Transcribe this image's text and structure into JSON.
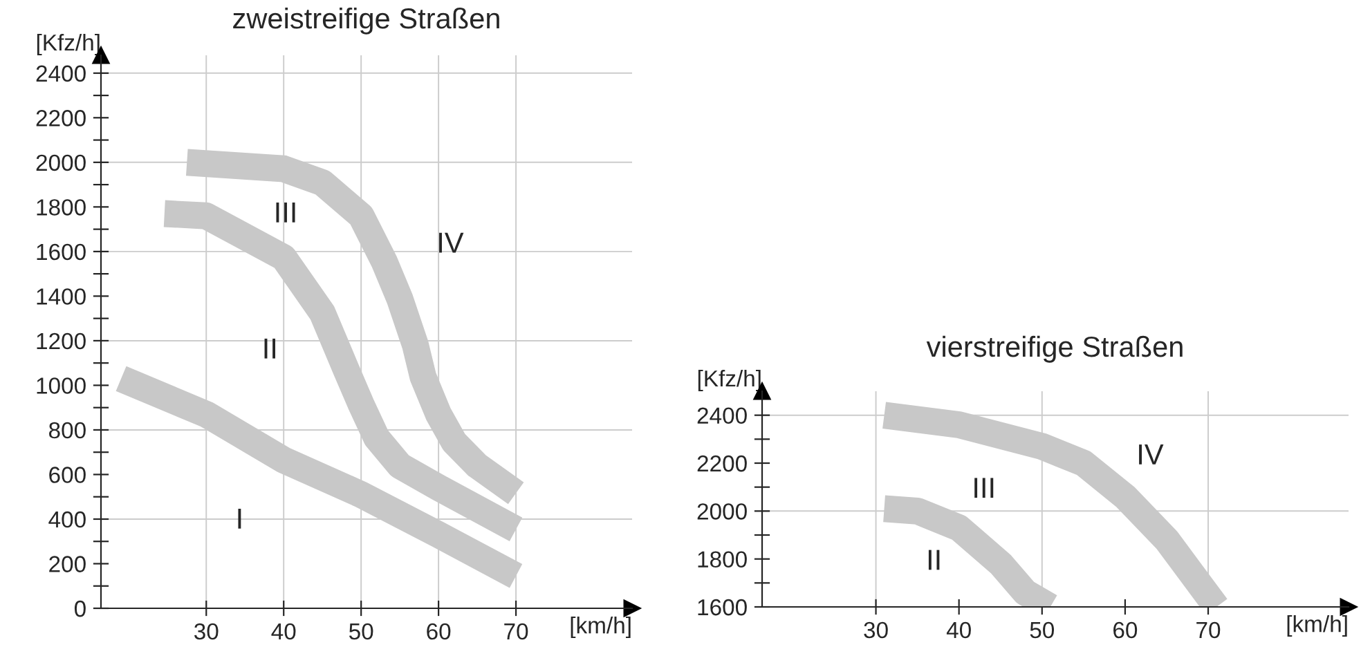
{
  "chart_data": [
    {
      "type": "line",
      "title": "zweistreifige Straßen",
      "xlabel": "[km/h]",
      "ylabel": "[Kfz/h]",
      "xlim": [
        16.4,
        85
      ],
      "ylim": [
        0,
        2480
      ],
      "xticks": [
        30,
        40,
        50,
        60,
        70
      ],
      "yticks": [
        0,
        {
          "value": 100,
          "label": null
        },
        200,
        {
          "value": 300,
          "label": null
        },
        400,
        {
          "value": 500,
          "label": null
        },
        600,
        {
          "value": 700,
          "label": null
        },
        800,
        {
          "value": 900,
          "label": null
        },
        1000,
        {
          "value": 1100,
          "label": null
        },
        1200,
        {
          "value": 1300,
          "label": null
        },
        1400,
        {
          "value": 1500,
          "label": null
        },
        1600,
        {
          "value": 1700,
          "label": null
        },
        1800,
        {
          "value": 1900,
          "label": null
        },
        2000,
        {
          "value": 2100,
          "label": null
        },
        2200,
        {
          "value": 2300,
          "label": null
        },
        2400
      ],
      "grid": false,
      "line_style": "solid",
      "marker": "none",
      "ref_lines": [
        {
          "axis": "x",
          "value": 30,
          "color": "#cccccc"
        },
        {
          "axis": "x",
          "value": 40,
          "color": "#cccccc"
        },
        {
          "axis": "x",
          "value": 50,
          "color": "#cccccc"
        },
        {
          "axis": "x",
          "value": 60,
          "color": "#cccccc"
        },
        {
          "axis": "x",
          "value": 70,
          "color": "#cccccc"
        },
        {
          "axis": "y",
          "value": 400,
          "color": "#cccccc"
        },
        {
          "axis": "y",
          "value": 800,
          "color": "#cccccc"
        },
        {
          "axis": "y",
          "value": 1200,
          "color": "#cccccc"
        },
        {
          "axis": "y",
          "value": 1600,
          "color": "#cccccc"
        },
        {
          "axis": "y",
          "value": 2000,
          "color": "#cccccc"
        },
        {
          "axis": "y",
          "value": 2400,
          "color": "#cccccc"
        }
      ],
      "series": [
        {
          "color": "#c8c8c8",
          "x": [
            19,
            30,
            40,
            50,
            60,
            70
          ],
          "values": [
            1030,
            870,
            665,
            510,
            330,
            145
          ]
        },
        {
          "color": "#c8c8c8",
          "x": [
            24.6,
            30,
            40,
            45,
            48,
            50,
            52,
            55,
            60,
            70
          ],
          "values": [
            1770,
            1760,
            1573,
            1324,
            1076,
            914,
            765,
            640,
            541,
            354
          ]
        },
        {
          "color": "#c8c8c8",
          "x": [
            27.5,
            40,
            45,
            50,
            53,
            55,
            57,
            58,
            60,
            62,
            65,
            70
          ],
          "values": [
            2000,
            1971,
            1909,
            1760,
            1554,
            1387,
            1181,
            1038,
            870,
            746,
            640,
            516
          ]
        }
      ],
      "annotations": [
        "I",
        "II",
        "III",
        "IV"
      ]
    },
    {
      "type": "line",
      "title": "vierstreifige Straßen",
      "xlabel": "[km/h]",
      "ylabel": "[Kfz/h]",
      "xlim": [
        16.3,
        86.9
      ],
      "ylim": [
        1600,
        2500
      ],
      "xticks": [
        30,
        40,
        50,
        60,
        70
      ],
      "yticks": [
        1600,
        {
          "value": 1700,
          "label": null
        },
        1800,
        {
          "value": 1900,
          "label": null
        },
        2000,
        {
          "value": 2100,
          "label": null
        },
        2200,
        {
          "value": 2300,
          "label": null
        },
        2400
      ],
      "grid": false,
      "line_style": "solid",
      "marker": "none",
      "ref_lines": [
        {
          "axis": "x",
          "value": 30,
          "color": "#cccccc"
        },
        {
          "axis": "x",
          "value": 50,
          "color": "#cccccc"
        },
        {
          "axis": "x",
          "value": 70,
          "color": "#cccccc"
        },
        {
          "axis": "y",
          "value": 2000,
          "color": "#cccccc"
        },
        {
          "axis": "y",
          "value": 2400,
          "color": "#cccccc"
        }
      ],
      "series": [
        {
          "color": "#c8c8c8",
          "x": [
            31,
            35,
            40,
            45,
            48,
            51
          ],
          "values": [
            2010,
            2000,
            1930,
            1780,
            1660,
            1600
          ]
        },
        {
          "color": "#c8c8c8",
          "x": [
            31,
            40,
            50,
            55,
            60,
            65,
            68,
            71
          ],
          "values": [
            2400,
            2360,
            2270,
            2200,
            2060,
            1880,
            1740,
            1600
          ]
        }
      ],
      "annotations": [
        "II",
        "III",
        "IV"
      ]
    }
  ]
}
